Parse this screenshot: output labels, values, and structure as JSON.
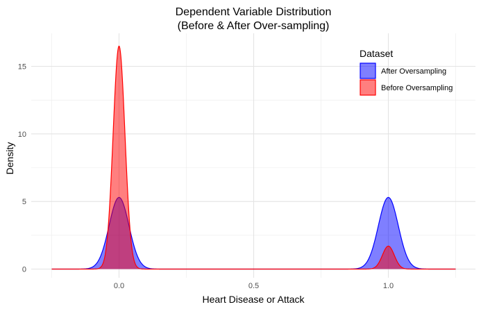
{
  "chart_data": {
    "type": "area",
    "title_line1": "Dependent Variable Distribution",
    "title_line2": "(Before & After Over-sampling)",
    "xlabel": "Heart Disease or Attack",
    "ylabel": "Density",
    "xlim": [
      -0.25,
      1.25
    ],
    "ylim": [
      0,
      17
    ],
    "x_ticks": [
      0.0,
      0.5,
      1.0
    ],
    "x_tick_labels": [
      "0.0",
      "0.5",
      "1.0"
    ],
    "y_ticks": [
      0,
      5,
      10,
      15
    ],
    "y_tick_labels": [
      "0",
      "5",
      "10",
      "15"
    ],
    "grid": true,
    "legend": {
      "title": "Dataset",
      "placement": "top-right",
      "entries": [
        "After Oversampling",
        "Before Oversampling"
      ]
    },
    "series": [
      {
        "name": "After Oversampling",
        "color": "#0000ff",
        "fill": "#0000ff",
        "peaks": [
          {
            "x": 0.0,
            "density": 5.3,
            "sd": 0.037
          },
          {
            "x": 1.0,
            "density": 5.3,
            "sd": 0.037
          }
        ]
      },
      {
        "name": "Before Oversampling",
        "color": "#ff0000",
        "fill": "#ff0000",
        "peaks": [
          {
            "x": 0.0,
            "density": 16.5,
            "sd": 0.022
          },
          {
            "x": 1.0,
            "density": 1.7,
            "sd": 0.022
          }
        ]
      }
    ]
  }
}
